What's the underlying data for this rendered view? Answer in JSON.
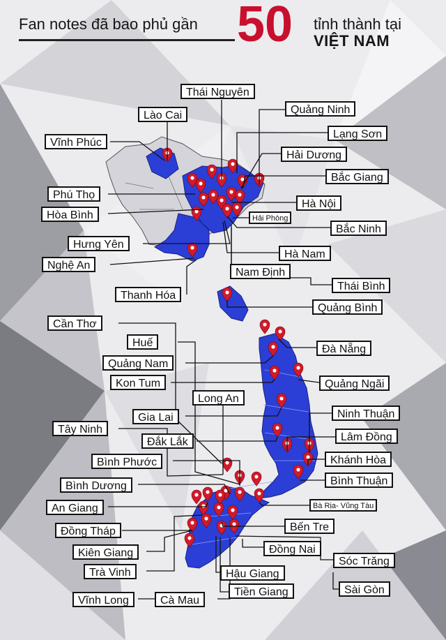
{
  "header": {
    "line1": "Fan notes đã bao phủ gần",
    "number": "50",
    "line1_right": "tỉnh thành tại",
    "line2_right": "VIỆT NAM"
  },
  "colors": {
    "accent": "#c8102e",
    "covered_fill": "#2b3fd6",
    "marker": "#d11a2a",
    "background": "#e9e9ec"
  },
  "icons": {
    "marker": "map-pin-icon"
  },
  "provinces": {
    "thai_nguyen": "Thái Nguyên",
    "lao_cai": "Lào Cai",
    "quang_ninh": "Quảng Ninh",
    "vinh_phuc": "Vĩnh Phúc",
    "lang_son": "Lạng Sơn",
    "hai_duong": "Hải Dương",
    "bac_giang": "Bắc Giang",
    "phu_tho": "Phú Thọ",
    "ha_noi": "Hà Nội",
    "hoa_binh": "Hòa Bình",
    "hai_phong": "Hải Phòng",
    "bac_ninh": "Bắc Ninh",
    "hung_yen": "Hưng Yên",
    "ha_nam": "Hà Nam",
    "nghe_an": "Nghệ An",
    "nam_dinh": "Nam Định",
    "thai_binh": "Thái Bình",
    "thanh_hoa": "Thanh Hóa",
    "quang_binh": "Quảng Bình",
    "can_tho": "Cần Thơ",
    "hue": "Huế",
    "da_nang": "Đà Nẵng",
    "quang_nam": "Quảng Nam",
    "kon_tum": "Kon Tum",
    "quang_ngai": "Quảng Ngãi",
    "long_an": "Long An",
    "ninh_thuan": "Ninh Thuận",
    "gia_lai": "Gia Lai",
    "tay_ninh": "Tây Ninh",
    "lam_dong": "Lâm Đồng",
    "dak_lak": "Đắk Lắk",
    "binh_phuoc": "Bình Phước",
    "khanh_hoa": "Khánh Hòa",
    "binh_thuan": "Bình Thuận",
    "binh_duong": "Bình Dương",
    "ba_ria": "Bà Rịa- Vũng Tàu",
    "an_giang": "An Giang",
    "ben_tre": "Bến Tre",
    "dong_thap": "Đồng Tháp",
    "dong_nai": "Đồng Nai",
    "kien_giang": "Kiên Giang",
    "soc_trang": "Sóc Trăng",
    "tra_vinh": "Trà Vinh",
    "hau_giang": "Hậu Giang",
    "sai_gon": "Sài Gòn",
    "tien_giang": "Tiền Giang",
    "vinh_long": "Vĩnh Long",
    "ca_mau": "Cà Mau"
  }
}
